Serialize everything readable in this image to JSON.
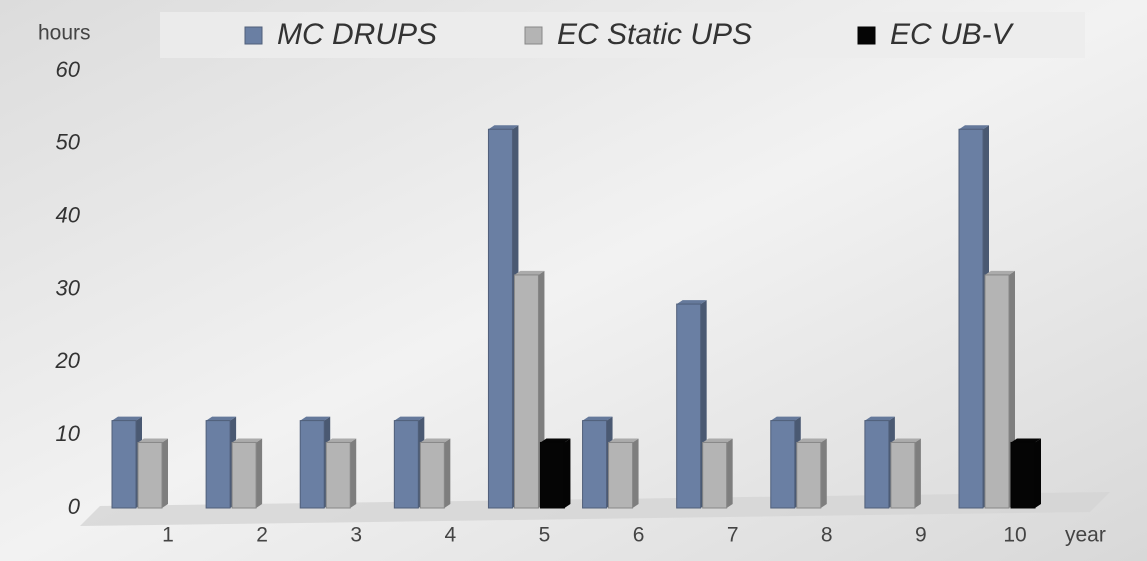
{
  "chart_data": {
    "type": "bar3d",
    "y_label": "hours",
    "x_label": "year",
    "categories": [
      "1",
      "2",
      "3",
      "4",
      "5",
      "6",
      "7",
      "8",
      "9",
      "10"
    ],
    "series": [
      {
        "name": "MC DRUPS",
        "color": "#6a7fa3",
        "values": [
          12,
          12,
          12,
          12,
          52,
          12,
          28,
          12,
          12,
          52
        ]
      },
      {
        "name": "EC Static UPS",
        "color": "#b4b4b4",
        "values": [
          9,
          9,
          9,
          9,
          32,
          9,
          9,
          9,
          9,
          32
        ]
      },
      {
        "name": "EC UB-V",
        "color": "#050505",
        "values": [
          null,
          null,
          null,
          null,
          9,
          null,
          null,
          null,
          null,
          9
        ]
      }
    ],
    "ylim": [
      0,
      60
    ],
    "yticks": [
      0,
      10,
      20,
      30,
      40,
      50,
      60
    ]
  }
}
